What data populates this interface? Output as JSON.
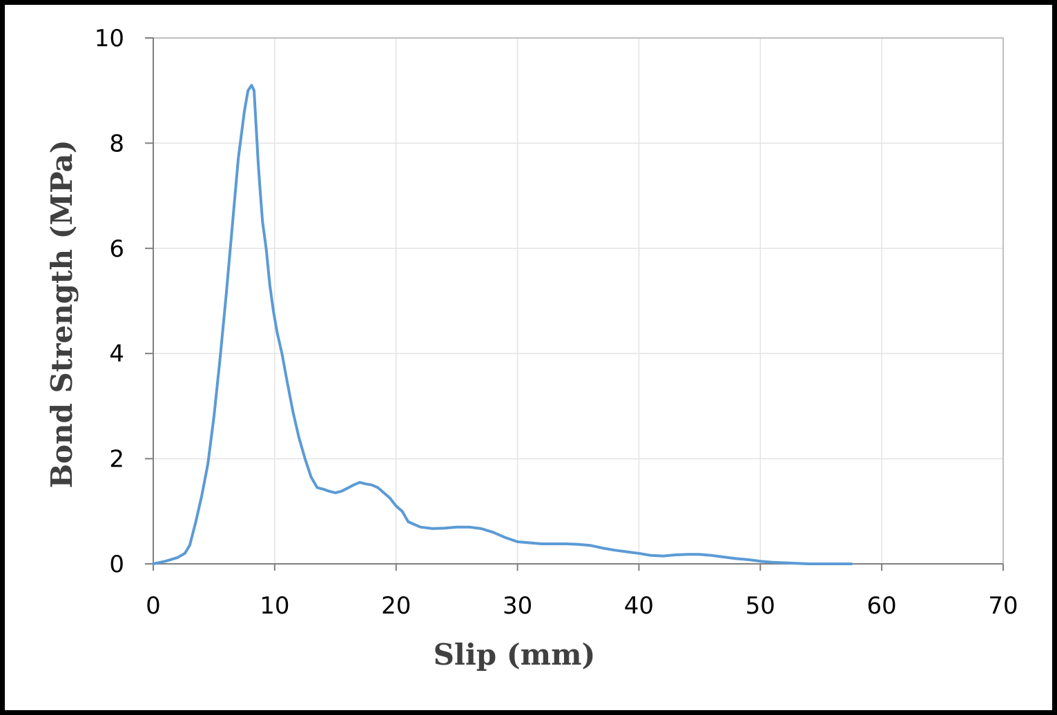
{
  "chart_data": {
    "type": "line",
    "title": "",
    "xlabel": "Slip (mm)",
    "ylabel": "Bond Strength (MPa)",
    "xlim": [
      0,
      70
    ],
    "ylim": [
      0,
      10
    ],
    "x_ticks": [
      0,
      10,
      20,
      30,
      40,
      50,
      60,
      70
    ],
    "y_ticks": [
      0,
      2,
      4,
      6,
      8,
      10
    ],
    "grid": true,
    "legend": "none",
    "series": [
      {
        "color": "#5b9bd5",
        "x": [
          0,
          1,
          2,
          2.6,
          3.0,
          3.5,
          4.0,
          4.5,
          5.0,
          5.5,
          6.0,
          6.5,
          7.0,
          7.5,
          7.8,
          8.1,
          8.3,
          8.5,
          8.65,
          8.8,
          9.0,
          9.3,
          9.6,
          9.9,
          10.2,
          10.6,
          11.0,
          11.5,
          12.0,
          12.5,
          13.0,
          13.5,
          14.0,
          14.5,
          15.0,
          15.5,
          16.0,
          16.5,
          17.0,
          17.5,
          18.0,
          18.5,
          19.0,
          19.5,
          20.0,
          20.5,
          21.0,
          22.0,
          23.0,
          24.0,
          25.0,
          26.0,
          27.0,
          28.0,
          29.0,
          30.0,
          31.0,
          32.0,
          33.0,
          34.0,
          35.0,
          36.0,
          37.0,
          38.0,
          39.0,
          40.0,
          41.0,
          42.0,
          43.0,
          44.0,
          45.0,
          46.0,
          47.0,
          48.0,
          49.0,
          50.0,
          51.0,
          52.0,
          53.0,
          54.0,
          55.0,
          56.0,
          57.0,
          57.5
        ],
        "y": [
          0,
          0.05,
          0.12,
          0.2,
          0.35,
          0.8,
          1.3,
          1.9,
          2.8,
          3.9,
          5.1,
          6.4,
          7.7,
          8.6,
          9.0,
          9.1,
          9.0,
          8.2,
          7.6,
          7.1,
          6.5,
          6.0,
          5.3,
          4.8,
          4.4,
          4.0,
          3.5,
          2.9,
          2.4,
          2.0,
          1.65,
          1.45,
          1.42,
          1.38,
          1.35,
          1.38,
          1.44,
          1.5,
          1.55,
          1.52,
          1.5,
          1.45,
          1.35,
          1.25,
          1.1,
          1.0,
          0.8,
          0.7,
          0.67,
          0.68,
          0.7,
          0.7,
          0.67,
          0.6,
          0.5,
          0.42,
          0.4,
          0.38,
          0.38,
          0.38,
          0.37,
          0.35,
          0.3,
          0.26,
          0.23,
          0.2,
          0.16,
          0.15,
          0.17,
          0.18,
          0.18,
          0.16,
          0.13,
          0.1,
          0.08,
          0.05,
          0.03,
          0.02,
          0.01,
          0.0,
          0.0,
          0.0,
          0.0,
          0.0
        ]
      }
    ]
  }
}
